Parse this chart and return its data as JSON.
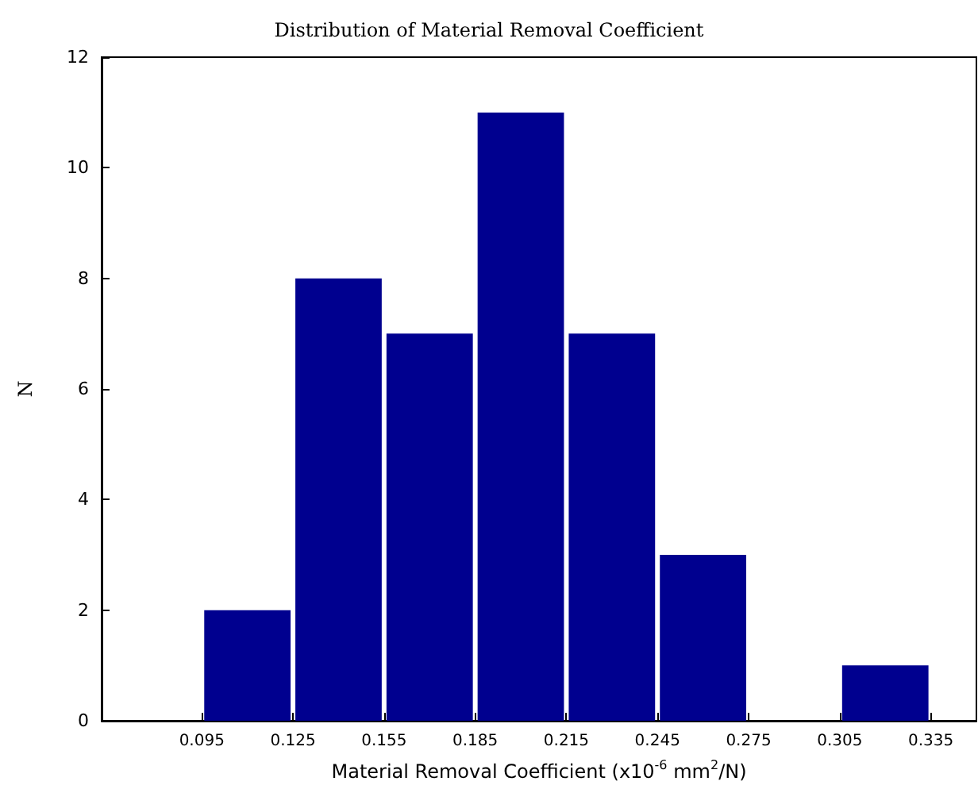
{
  "chart_data": {
    "type": "histogram",
    "title": "Distribution of Material Removal Coefficient",
    "xlabel": "Material Removal Coefficient (x10$^{-6}$ mm$^{2}$/N)",
    "ylabel": "N",
    "bins": [
      0.095,
      0.125,
      0.155,
      0.185,
      0.215,
      0.245,
      0.275,
      0.305,
      0.335
    ],
    "values": [
      2,
      8,
      7,
      11,
      7,
      3,
      0,
      1
    ],
    "color": "#00008f",
    "xlim": [
      0.062,
      0.35
    ],
    "xticks": [
      0.095,
      0.125,
      0.155,
      0.185,
      0.215,
      0.245,
      0.275,
      0.305,
      0.335
    ],
    "ylim": [
      0,
      12
    ],
    "yticks": [
      0,
      2,
      4,
      6,
      8,
      10,
      12
    ],
    "grid": false
  }
}
